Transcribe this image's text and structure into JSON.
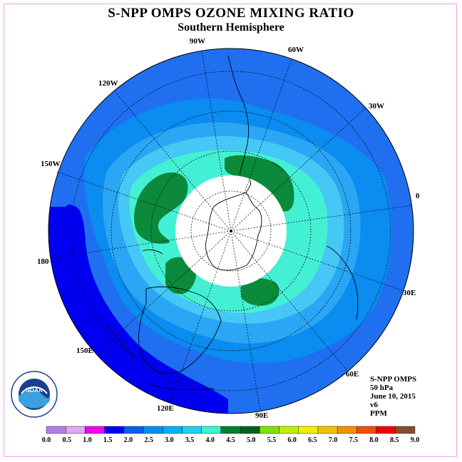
{
  "header": {
    "title": "S-NPP OMPS OZONE MIXING RATIO",
    "subtitle": "Southern Hemisphere"
  },
  "longitude_labels": {
    "lon_90w": "90W",
    "lon_60w": "60W",
    "lon_120w": "120W",
    "lon_30w": "30W",
    "lon_150w": "150W",
    "lon_0": "0",
    "lon_180": "180",
    "lon_30e": "30E",
    "lon_150e": "150E",
    "lon_60e": "60E",
    "lon_120e": "120E",
    "lon_90e": "90E"
  },
  "info": {
    "product": "S-NPP OMPS",
    "level": "50 hPa",
    "date": "June 10, 2015",
    "version": "v6",
    "units": "PPM"
  },
  "logo": {
    "text": "NOAA",
    "ring_text": "NATIONAL OCEANIC AND ATMOSPHERIC ADMINISTRATION · U.S. DEPARTMENT OF COMMERCE"
  },
  "colorbar": {
    "ticks": [
      "0.0",
      "0.5",
      "1.0",
      "1.5",
      "2.0",
      "2.5",
      "3.0",
      "3.5",
      "4.0",
      "4.5",
      "5.0",
      "5.5",
      "6.0",
      "6.5",
      "7.0",
      "7.5",
      "8.0",
      "8.5",
      "9.0"
    ],
    "colors": [
      "#b080e8",
      "#e0a8f0",
      "#f000f0",
      "#0000f0",
      "#0060f0",
      "#0090f0",
      "#00b0f0",
      "#20d0f0",
      "#40f0d0",
      "#008030",
      "#006020",
      "#80e000",
      "#c0f000",
      "#f0f000",
      "#f0c000",
      "#f09000",
      "#f05000",
      "#f00000",
      "#805030"
    ]
  },
  "colors": {
    "frame": "#e9a6e9",
    "ocean_base": "#1f6ff0",
    "band_2_5": "#0a8cf0",
    "band_3_0": "#2aa6f5",
    "band_3_5": "#45c8f5",
    "band_4_0": "#44f0d4",
    "band_4_5": "#0a8a3a",
    "band_1_5": "#0000f0",
    "pole_hole": "#ffffff"
  }
}
